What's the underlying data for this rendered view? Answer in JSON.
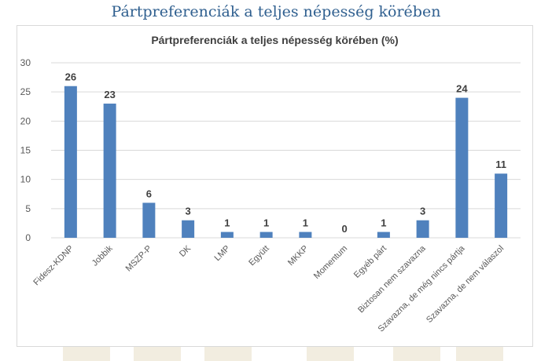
{
  "page": {
    "heading": "Pártpreferenciák a teljes népesség körében"
  },
  "chart_data": {
    "type": "bar",
    "title": "Pártpreferenciák a teljes népesség körében (%)",
    "xlabel": "",
    "ylabel": "",
    "categories": [
      "Fidesz-KDNP",
      "Jobbik",
      "MSZP-P",
      "DK",
      "LMP",
      "Együtt",
      "MKKP",
      "Momentum",
      "Egyéb párt",
      "Biztosan nem szavazna",
      "Szavazna, de még nincs pártja",
      "Szavazna, de nem válaszol"
    ],
    "values": [
      26,
      23,
      6,
      3,
      1,
      1,
      1,
      0,
      1,
      3,
      24,
      11
    ],
    "ylim": [
      0,
      30
    ],
    "yticks": [
      0,
      5,
      10,
      15,
      20,
      25,
      30
    ],
    "grid": true,
    "legend": "none",
    "bar_color": "#4f81bd",
    "grid_color": "#d9d9d9",
    "text_color": "#595959",
    "label_color": "#404040"
  }
}
